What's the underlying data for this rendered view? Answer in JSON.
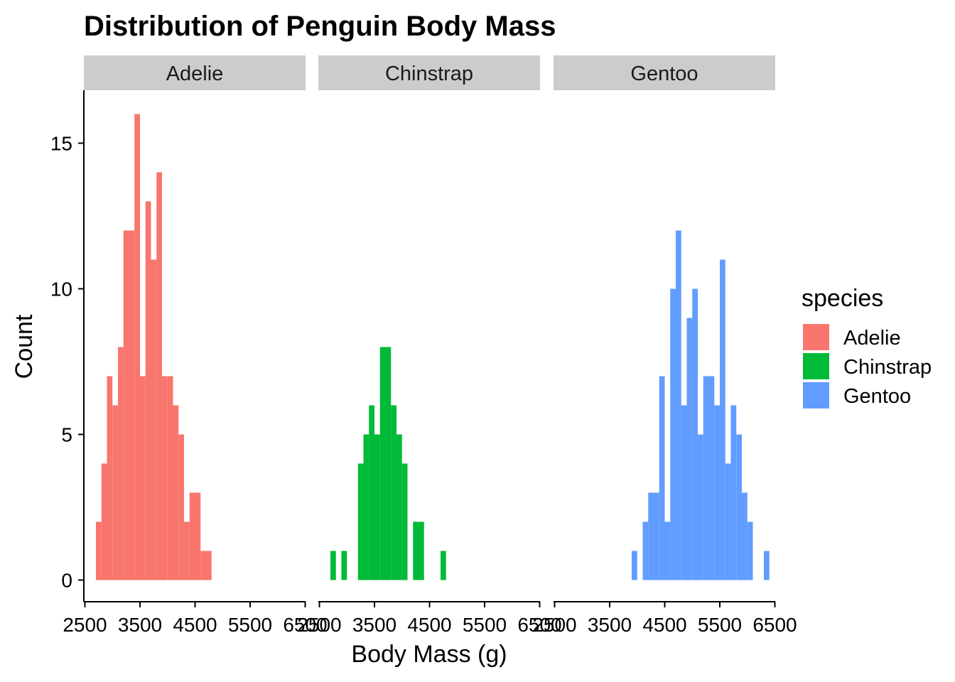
{
  "chart_data": {
    "type": "bar",
    "title": "Distribution of Penguin Body Mass",
    "xlabel": "Body Mass (g)",
    "ylabel": "Count",
    "xlim": [
      2500,
      6500
    ],
    "ylim": [
      0,
      16
    ],
    "x_ticks": [
      2500,
      3500,
      4500,
      5500,
      6500
    ],
    "y_ticks": [
      0,
      5,
      10,
      15
    ],
    "bin_width": 100,
    "legend": {
      "title": "species",
      "position": "right"
    },
    "facets": [
      "Adelie",
      "Chinstrap",
      "Gentoo"
    ],
    "series": [
      {
        "name": "Adelie",
        "color": "#F8766D",
        "x": [
          2750,
          2850,
          2950,
          3050,
          3150,
          3250,
          3350,
          3450,
          3550,
          3650,
          3750,
          3850,
          3950,
          4050,
          4150,
          4250,
          4350,
          4450,
          4550,
          4650,
          4750
        ],
        "values": [
          2,
          4,
          7,
          6,
          8,
          12,
          12,
          16,
          7,
          13,
          11,
          14,
          7,
          7,
          6,
          5,
          2,
          3,
          3,
          1,
          1
        ]
      },
      {
        "name": "Chinstrap",
        "color": "#00BA38",
        "x": [
          2750,
          2950,
          3250,
          3350,
          3450,
          3550,
          3650,
          3750,
          3850,
          3950,
          4050,
          4250,
          4350,
          4750
        ],
        "values": [
          1,
          1,
          4,
          5,
          6,
          5,
          8,
          8,
          6,
          5,
          4,
          2,
          2,
          1
        ]
      },
      {
        "name": "Gentoo",
        "color": "#619CFF",
        "x": [
          3950,
          4150,
          4250,
          4350,
          4450,
          4550,
          4650,
          4750,
          4850,
          4950,
          5050,
          5150,
          5250,
          5350,
          5450,
          5550,
          5650,
          5750,
          5850,
          5950,
          6050,
          6350
        ],
        "values": [
          1,
          2,
          3,
          3,
          7,
          2,
          10,
          12,
          6,
          9,
          10,
          5,
          7,
          7,
          6,
          11,
          4,
          6,
          5,
          3,
          2,
          1
        ]
      }
    ]
  }
}
